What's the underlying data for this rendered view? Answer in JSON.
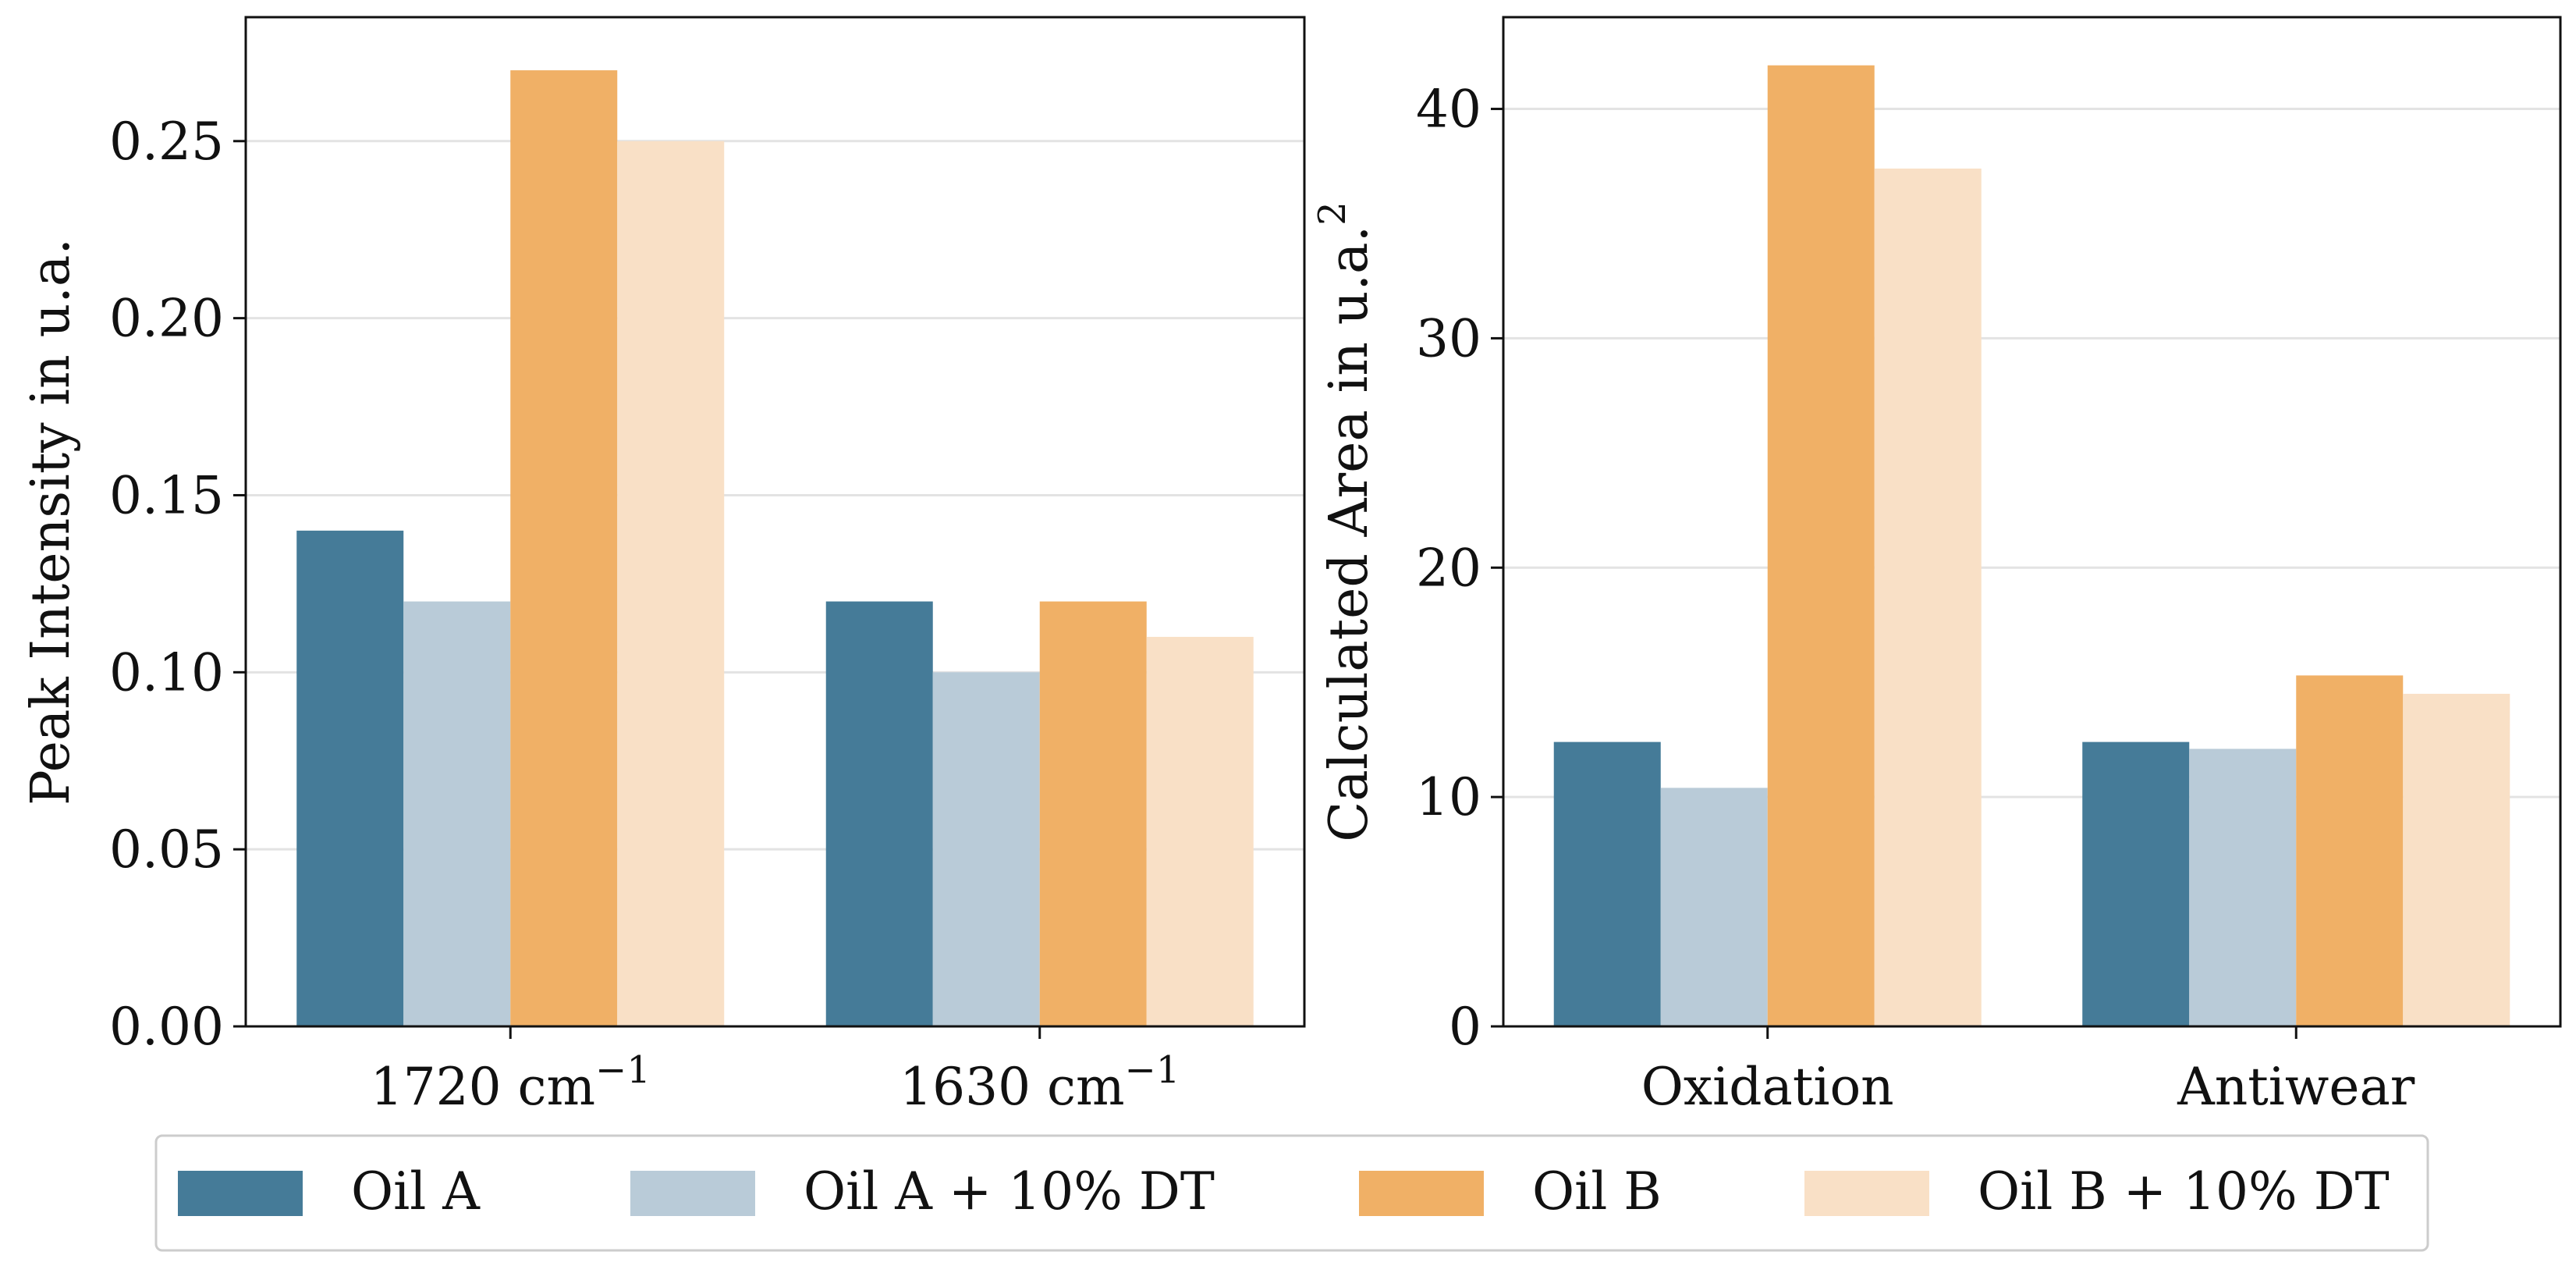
{
  "chart_data": [
    {
      "type": "bar",
      "title": "",
      "xlabel": "",
      "ylabel": "Peak Intensity in u.a.",
      "ylim": [
        0,
        0.285
      ],
      "yticks": [
        0.0,
        0.05,
        0.1,
        0.15,
        0.2,
        0.25
      ],
      "ytick_labels": [
        "0.00",
        "0.05",
        "0.10",
        "0.15",
        "0.20",
        "0.25"
      ],
      "categories": [
        "1720 cm−1",
        "1630 cm−1"
      ],
      "category_parts": [
        {
          "base": "1720 cm",
          "sup": "−1"
        },
        {
          "base": "1630 cm",
          "sup": "−1"
        }
      ],
      "grid": "y",
      "series": [
        {
          "name": "Oil A",
          "values": [
            0.14,
            0.12
          ]
        },
        {
          "name": "Oil A + 10% DT",
          "values": [
            0.12,
            0.1
          ]
        },
        {
          "name": "Oil B",
          "values": [
            0.27,
            0.12
          ]
        },
        {
          "name": "Oil B + 10% DT",
          "values": [
            0.25,
            0.11
          ]
        }
      ]
    },
    {
      "type": "bar",
      "title": "",
      "xlabel": "",
      "ylabel": "Calculated Area in u.a.",
      "ylabel_sup": "2",
      "ylim": [
        0,
        44
      ],
      "yticks": [
        0,
        10,
        20,
        30,
        40
      ],
      "ytick_labels": [
        "0",
        "10",
        "20",
        "30",
        "40"
      ],
      "categories": [
        "Oxidation",
        "Antiwear"
      ],
      "grid": "y",
      "series": [
        {
          "name": "Oil A",
          "values": [
            12.4,
            12.4
          ]
        },
        {
          "name": "Oil A + 10% DT",
          "values": [
            10.4,
            12.1
          ]
        },
        {
          "name": "Oil B",
          "values": [
            41.9,
            15.3
          ]
        },
        {
          "name": "Oil B + 10% DT",
          "values": [
            37.4,
            14.5
          ]
        }
      ]
    }
  ],
  "legend": {
    "placement": "bottom",
    "entries": [
      "Oil A",
      "Oil A + 10% DT",
      "Oil B",
      "Oil B + 10% DT"
    ]
  },
  "colors": [
    "#457b98",
    "#b9cbd8",
    "#f0b066",
    "#f9e0c6"
  ]
}
